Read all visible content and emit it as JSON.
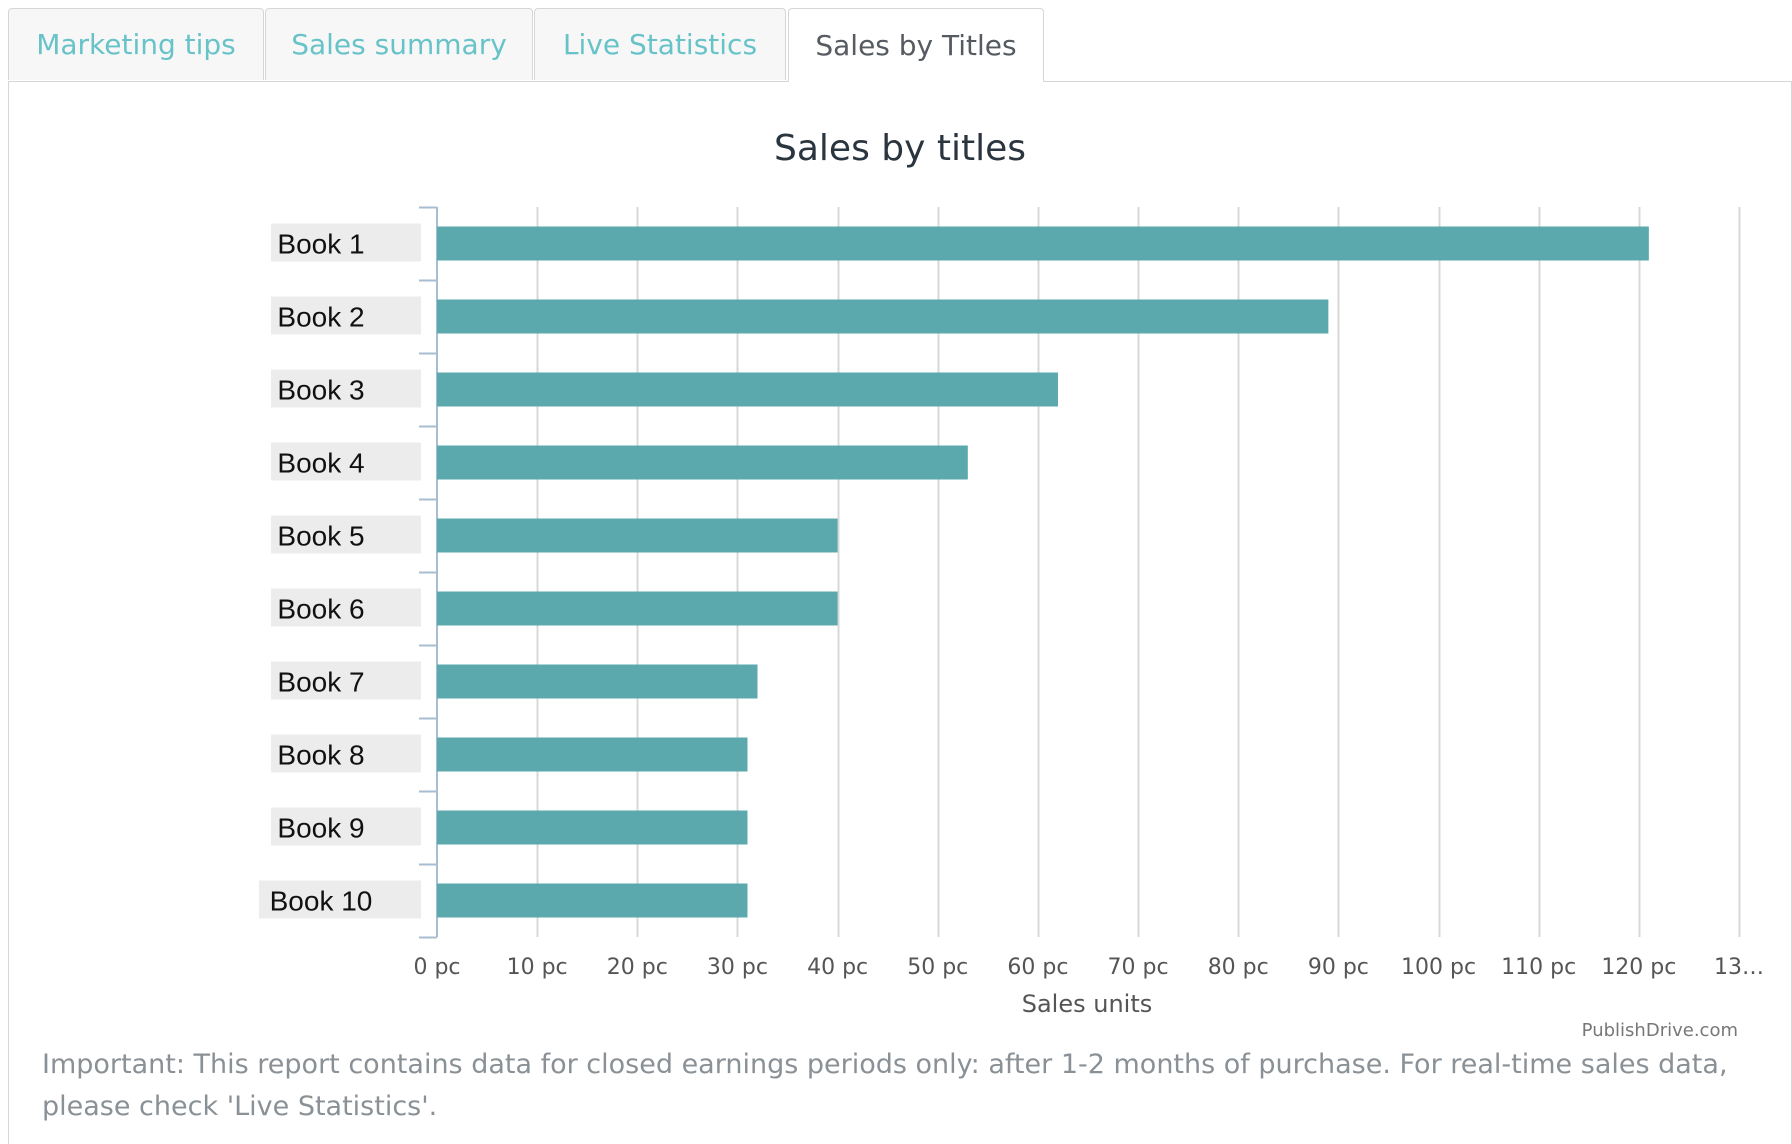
{
  "tabs": [
    {
      "label": "Marketing tips",
      "active": false
    },
    {
      "label": "Sales summary",
      "active": false
    },
    {
      "label": "Live Statistics",
      "active": false
    },
    {
      "label": "Sales by Titles",
      "active": true
    }
  ],
  "colors": {
    "bar": "#5ba8ad",
    "tab_link": "#68c3c9",
    "tab_active": "#555b60",
    "grid": "#d8d8d8",
    "axis": "#a9bdd0",
    "category_label_bg": "#ececec"
  },
  "chart_data": {
    "type": "bar",
    "orientation": "horizontal",
    "title": "Sales by titles",
    "categories": [
      "Book 1",
      "Book 2",
      "Book 3",
      "Book 4",
      "Book 5",
      "Book 6",
      "Book 7",
      "Book 8",
      "Book 9",
      "Book 10"
    ],
    "values": [
      121,
      89,
      62,
      53,
      40,
      40,
      32,
      31,
      31,
      31
    ],
    "xlabel": "Sales units",
    "ylabel": "",
    "xlim": [
      0,
      130
    ],
    "x_ticks": [
      0,
      10,
      20,
      30,
      40,
      50,
      60,
      70,
      80,
      90,
      100,
      110,
      120,
      130
    ],
    "x_tick_labels": [
      "0 pc",
      "10 pc",
      "20 pc",
      "30 pc",
      "40 pc",
      "50 pc",
      "60 pc",
      "70 pc",
      "80 pc",
      "90 pc",
      "100 pc",
      "110 pc",
      "120 pc",
      "13…"
    ],
    "grid": true,
    "legend": "none",
    "credit": "PublishDrive.com"
  },
  "note": "Important: This report contains data for closed earnings periods only: after 1-2 months of purchase. For real-time sales data, please check 'Live Statistics'."
}
